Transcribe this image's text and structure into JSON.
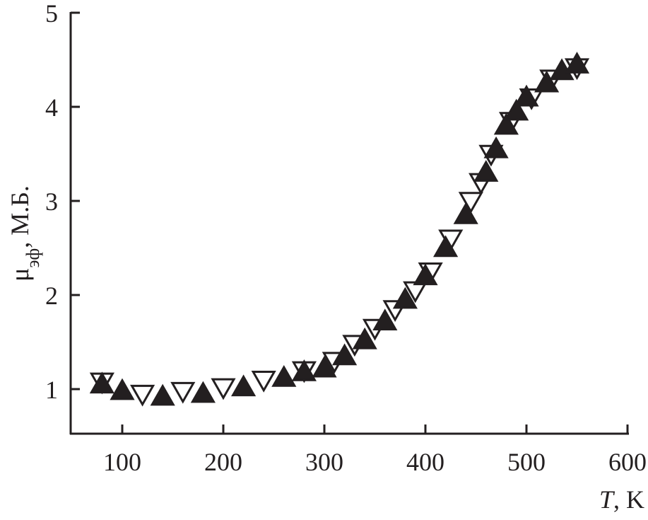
{
  "chart_data": {
    "type": "scatter",
    "title": "",
    "xlabel": "T",
    "xlabel_unit": ", K",
    "ylabel": "μ",
    "ylabel_sub": "эф",
    "ylabel_unit": ", М.Б.",
    "xlim": [
      50,
      600
    ],
    "ylim": [
      0.5,
      5
    ],
    "x_ticks": [
      "100",
      "200",
      "300",
      "400",
      "500",
      "600"
    ],
    "y_ticks": [
      "1",
      "2",
      "3",
      "4",
      "5"
    ],
    "grid": false,
    "series": [
      {
        "marker": "filled-triangle-up",
        "color": "#231f20",
        "x": [
          80,
          100,
          140,
          180,
          220,
          260,
          280,
          300,
          320,
          340,
          360,
          380,
          400,
          420,
          440,
          460,
          470,
          480,
          490,
          500,
          520,
          535,
          550
        ],
        "y": [
          1.05,
          0.98,
          0.92,
          0.95,
          1.02,
          1.12,
          1.18,
          1.22,
          1.35,
          1.52,
          1.72,
          1.95,
          2.2,
          2.5,
          2.85,
          3.3,
          3.55,
          3.8,
          3.95,
          4.1,
          4.25,
          4.38,
          4.45
        ]
      },
      {
        "marker": "open-triangle-down",
        "color": "#231f20",
        "x": [
          80,
          120,
          160,
          200,
          240,
          280,
          310,
          330,
          350,
          370,
          390,
          405,
          425,
          445,
          455,
          465,
          485,
          505,
          525,
          550
        ],
        "y": [
          1.08,
          0.95,
          0.98,
          1.02,
          1.1,
          1.2,
          1.3,
          1.48,
          1.65,
          1.85,
          2.05,
          2.25,
          2.6,
          3.0,
          3.2,
          3.5,
          3.85,
          4.1,
          4.3,
          4.42
        ]
      }
    ]
  }
}
